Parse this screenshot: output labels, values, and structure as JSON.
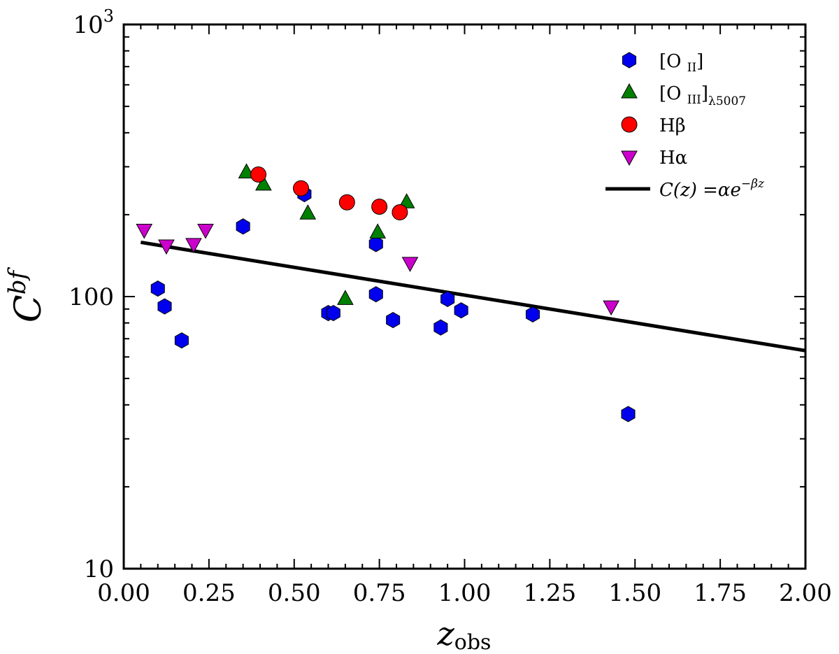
{
  "chart_data": {
    "type": "scatter",
    "title": "",
    "xlabel": {
      "main": "z",
      "sub": "obs"
    },
    "ylabel": {
      "main": "C",
      "sup": "bf"
    },
    "xlim": [
      0.0,
      2.0
    ],
    "ylim": [
      10,
      1000
    ],
    "yscale": "log",
    "x_ticks": [
      0.0,
      0.25,
      0.5,
      0.75,
      1.0,
      1.25,
      1.5,
      1.75,
      2.0
    ],
    "x_tick_labels": [
      "0.00",
      "0.25",
      "0.50",
      "0.75",
      "1.00",
      "1.25",
      "1.50",
      "1.75",
      "2.00"
    ],
    "y_tick_labels": [
      {
        "value": 10,
        "base": "10",
        "exp": ""
      },
      {
        "value": 100,
        "base": "100",
        "exp": ""
      },
      {
        "value": 1000,
        "base": "10",
        "exp": "3"
      }
    ],
    "legend_position": "top-right",
    "series": [
      {
        "name": "[O II]",
        "label_main": "[O ",
        "label_sub": "II",
        "label_end": "]",
        "marker": "hexagon",
        "color": "#0000ee",
        "points": [
          [
            0.1,
            107
          ],
          [
            0.12,
            92
          ],
          [
            0.17,
            69
          ],
          [
            0.35,
            181
          ],
          [
            0.53,
            238
          ],
          [
            0.6,
            87
          ],
          [
            0.615,
            87
          ],
          [
            0.74,
            156
          ],
          [
            0.74,
            102
          ],
          [
            0.79,
            82
          ],
          [
            0.93,
            77
          ],
          [
            0.95,
            98
          ],
          [
            0.99,
            89
          ],
          [
            1.2,
            86
          ],
          [
            1.48,
            37
          ]
        ]
      },
      {
        "name": "[O III]λ5007",
        "label_main": "[O ",
        "label_sub": "III",
        "label_end": "]",
        "label_sub2": "λ5007",
        "marker": "triangle-up",
        "color": "#008000",
        "points": [
          [
            0.36,
            286
          ],
          [
            0.41,
            258
          ],
          [
            0.54,
            202
          ],
          [
            0.65,
            98
          ],
          [
            0.745,
            172
          ],
          [
            0.83,
            222
          ]
        ]
      },
      {
        "name": "Hβ",
        "label_main": "Hβ",
        "marker": "circle",
        "color": "#ff0000",
        "points": [
          [
            0.395,
            281
          ],
          [
            0.52,
            250
          ],
          [
            0.655,
            222
          ],
          [
            0.75,
            214
          ],
          [
            0.81,
            204
          ]
        ]
      },
      {
        "name": "Hα",
        "label_main": "Hα",
        "marker": "triangle-down",
        "color": "#cc00cc",
        "points": [
          [
            0.06,
            176
          ],
          [
            0.125,
            154
          ],
          [
            0.205,
            156
          ],
          [
            0.24,
            176
          ],
          [
            0.84,
            133
          ],
          [
            1.43,
            92
          ]
        ]
      }
    ],
    "fit_line": {
      "name": "C(z) = αe^(-βz)",
      "label": "C(z) =αe",
      "label_sup": "−βz",
      "x_range": [
        0.05,
        2.0
      ],
      "alpha": 162,
      "beta": 0.47,
      "color": "#000000"
    }
  }
}
